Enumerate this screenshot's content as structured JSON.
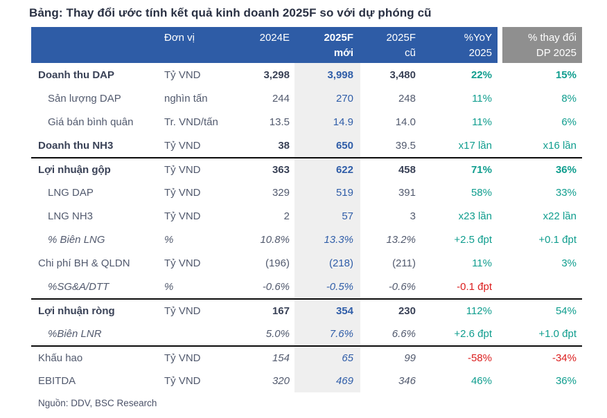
{
  "colors": {
    "header_blue": "#2e5ca6",
    "header_gray": "#8f8f8f",
    "highlight_column": "#efefef",
    "new_estimate_blue": "#2f5da8",
    "positive_teal": "#0f9d8e",
    "negative_red": "#db1d1d",
    "text_dark": "#3a4257"
  },
  "chart_data": {
    "type": "table",
    "title": "Bảng: Thay đổi ước tính kết quả kinh doanh 2025F so với dự phóng cũ",
    "source": "Nguồn: DDV, BSC Research",
    "header": {
      "label": "",
      "unit": "Đơn vị",
      "y2024": "2024E",
      "new1": "2025F",
      "new2": "mới",
      "old1": "2025F",
      "old2": "cũ",
      "yoy1": "%YoY",
      "yoy2": "2025",
      "chg1": "% thay đổi",
      "chg2": "DP 2025"
    },
    "rows": [
      {
        "label": "Doanh thu DAP",
        "unit": "Tỷ VND",
        "y2024": "3,298",
        "new": "3,998",
        "old": "3,480",
        "yoy": "22%",
        "chg": "15%"
      },
      {
        "label": "Sản lượng DAP",
        "unit": "nghìn tấn",
        "y2024": "244",
        "new": "270",
        "old": "248",
        "yoy": "11%",
        "chg": "8%"
      },
      {
        "label": "Giá bán bình quân",
        "unit": "Tr. VND/tấn",
        "y2024": "13.5",
        "new": "14.9",
        "old": "14.0",
        "yoy": "11%",
        "chg": "6%"
      },
      {
        "label": "Doanh thu NH3",
        "unit": "Tỷ VND",
        "y2024": "38",
        "new": "650",
        "old": "39.5",
        "yoy": "x17 lần",
        "chg": "x16 lần"
      },
      {
        "label": "Lợi nhuận gộp",
        "unit": "Tỷ VND",
        "y2024": "363",
        "new": "622",
        "old": "458",
        "yoy": "71%",
        "chg": "36%"
      },
      {
        "label": "LNG DAP",
        "unit": "Tỷ VND",
        "y2024": "329",
        "new": "519",
        "old": "391",
        "yoy": "58%",
        "chg": "33%"
      },
      {
        "label": "LNG NH3",
        "unit": "Tỷ VND",
        "y2024": "2",
        "new": "57",
        "old": "3",
        "yoy": "x23 lần",
        "chg": "x22 lần"
      },
      {
        "label": "% Biên LNG",
        "unit": "%",
        "y2024": "10.8%",
        "new": "13.3%",
        "old": "13.2%",
        "yoy": "+2.5 đpt",
        "chg": "+0.1 đpt"
      },
      {
        "label": "Chi phí BH & QLDN",
        "unit": "Tỷ VND",
        "y2024": "(196)",
        "new": "(218)",
        "old": "(211)",
        "yoy": "11%",
        "chg": "3%"
      },
      {
        "label": "%SG&A/DTT",
        "unit": "%",
        "y2024": "-0.6%",
        "new": "-0.5%",
        "old": "-0.6%",
        "yoy": "-0.1 đpt",
        "chg": ""
      },
      {
        "label": "Lợi nhuận ròng",
        "unit": "Tỷ VND",
        "y2024": "167",
        "new": "354",
        "old": "230",
        "yoy": "112%",
        "chg": "54%"
      },
      {
        "label": "%Biên LNR",
        "unit": "",
        "y2024": "5.0%",
        "new": "7.6%",
        "old": "6.6%",
        "yoy": "+2.6 đpt",
        "chg": "+1.0 đpt"
      },
      {
        "label": "Khấu hao",
        "unit": "Tỷ VND",
        "y2024": "154",
        "new": "65",
        "old": "99",
        "yoy": "-58%",
        "chg": "-34%"
      },
      {
        "label": "EBITDA",
        "unit": "Tỷ VND",
        "y2024": "320",
        "new": "469",
        "old": "346",
        "yoy": "46%",
        "chg": "36%"
      }
    ]
  }
}
